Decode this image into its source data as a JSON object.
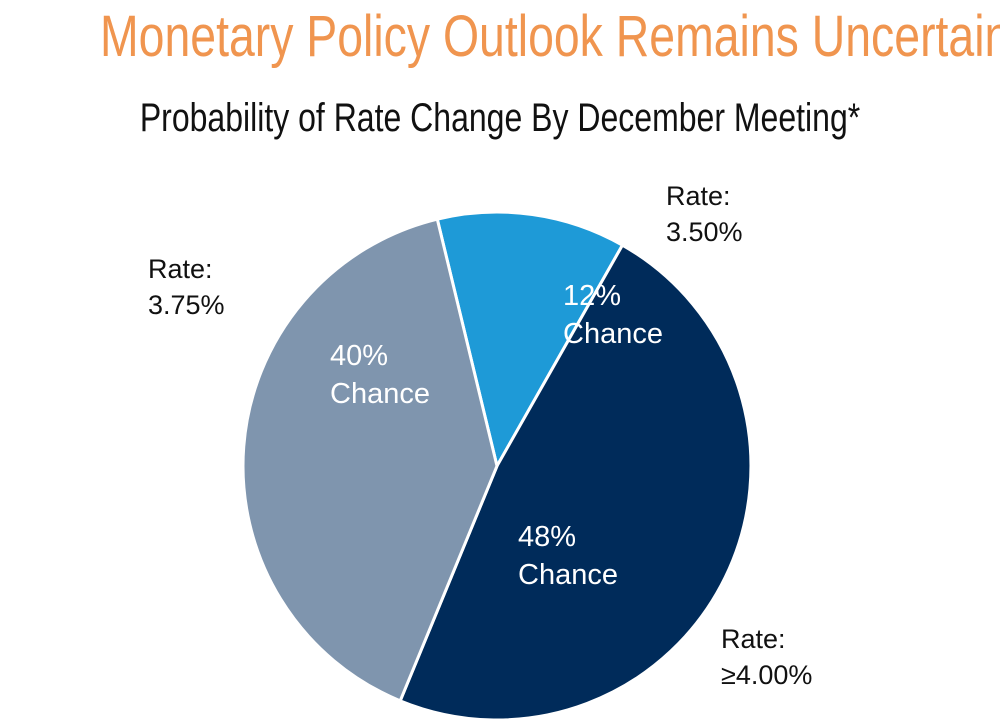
{
  "colors": {
    "title": "#F0954F",
    "rate_375": "#7F95AE",
    "rate_350": "#1E9AD7",
    "rate_400": "#002B5A"
  },
  "chart_data": {
    "type": "pie",
    "title": "Monetary Policy Outlook Remains Uncertain",
    "subtitle": "Probability of Rate Change By December Meeting*",
    "slices": [
      {
        "value": 12,
        "color": "#1E9AD7",
        "inner_line1": "12%",
        "inner_line2": "Chance",
        "outer_line1": "Rate:",
        "outer_line2": "3.50%"
      },
      {
        "value": 48,
        "color": "#002B5A",
        "inner_line1": "48%",
        "inner_line2": "Chance",
        "outer_line1": "Rate:",
        "outer_line2": "≥4.00%"
      },
      {
        "value": 40,
        "color": "#7F95AE",
        "inner_line1": "40%",
        "inner_line2": "Chance",
        "outer_line1": "Rate:",
        "outer_line2": "3.75%"
      }
    ]
  }
}
